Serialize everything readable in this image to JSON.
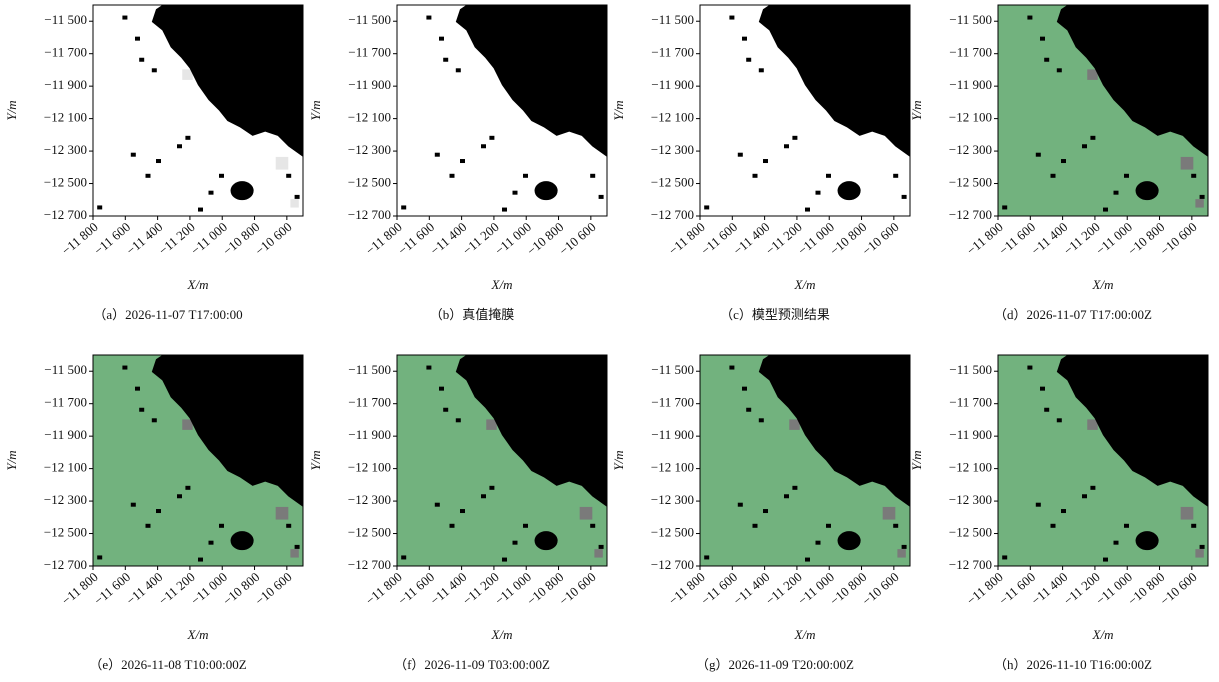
{
  "chart_data": [
    {
      "type": "image",
      "caption": "（a）2026-11-07 T17:00:00",
      "palette": {
        "background": "#ffffff",
        "mask": "#000000",
        "edge": "#e6e6e6"
      }
    },
    {
      "type": "image",
      "caption": "（b）真值掩膜",
      "palette": {
        "background": "#ffffff",
        "mask": "#000000",
        "edge": "#ffffff"
      }
    },
    {
      "type": "image",
      "caption": "（c）模型预测结果",
      "palette": {
        "background": "#ffffff",
        "mask": "#000000",
        "edge": "#ffffff"
      }
    },
    {
      "type": "image",
      "caption": "（d）2026-11-07 T17:00:00Z",
      "palette": {
        "background": "#72b27e",
        "mask": "#000000",
        "edge": "#7a7a7a"
      }
    },
    {
      "type": "image",
      "caption": "（e）2026-11-08 T10:00:00Z",
      "palette": {
        "background": "#72b27e",
        "mask": "#000000",
        "edge": "#7a7a7a"
      }
    },
    {
      "type": "image",
      "caption": "（f）2026-11-09 T03:00:00Z",
      "palette": {
        "background": "#72b27e",
        "mask": "#000000",
        "edge": "#7a7a7a"
      }
    },
    {
      "type": "image",
      "caption": "（g）2026-11-09 T20:00:00Z",
      "palette": {
        "background": "#72b27e",
        "mask": "#000000",
        "edge": "#7a7a7a"
      }
    },
    {
      "type": "image",
      "caption": "（h）2026-11-10 T16:00:00Z",
      "palette": {
        "background": "#72b27e",
        "mask": "#000000",
        "edge": "#7a7a7a"
      }
    }
  ],
  "axes": {
    "xlabel": "X/m",
    "ylabel": "Y/m",
    "xlim": [
      -11800,
      -10500
    ],
    "ylim": [
      -12700,
      -11400
    ],
    "xticks": [
      {
        "value": -11800,
        "label": "−11 800"
      },
      {
        "value": -11600,
        "label": "−11 600"
      },
      {
        "value": -11400,
        "label": "−11 400"
      },
      {
        "value": -11200,
        "label": "−11 200"
      },
      {
        "value": -11000,
        "label": "−11 000"
      },
      {
        "value": -10800,
        "label": "−10 800"
      },
      {
        "value": -10600,
        "label": "−10 600"
      }
    ],
    "yticks": [
      {
        "value": -11500,
        "label": "−11 500"
      },
      {
        "value": -11700,
        "label": "−11 700"
      },
      {
        "value": -11900,
        "label": "−11 900"
      },
      {
        "value": -12100,
        "label": "−12 100"
      },
      {
        "value": -12300,
        "label": "−12 300"
      },
      {
        "value": -12500,
        "label": "−12 500"
      },
      {
        "value": -12700,
        "label": "−12 700"
      }
    ]
  }
}
